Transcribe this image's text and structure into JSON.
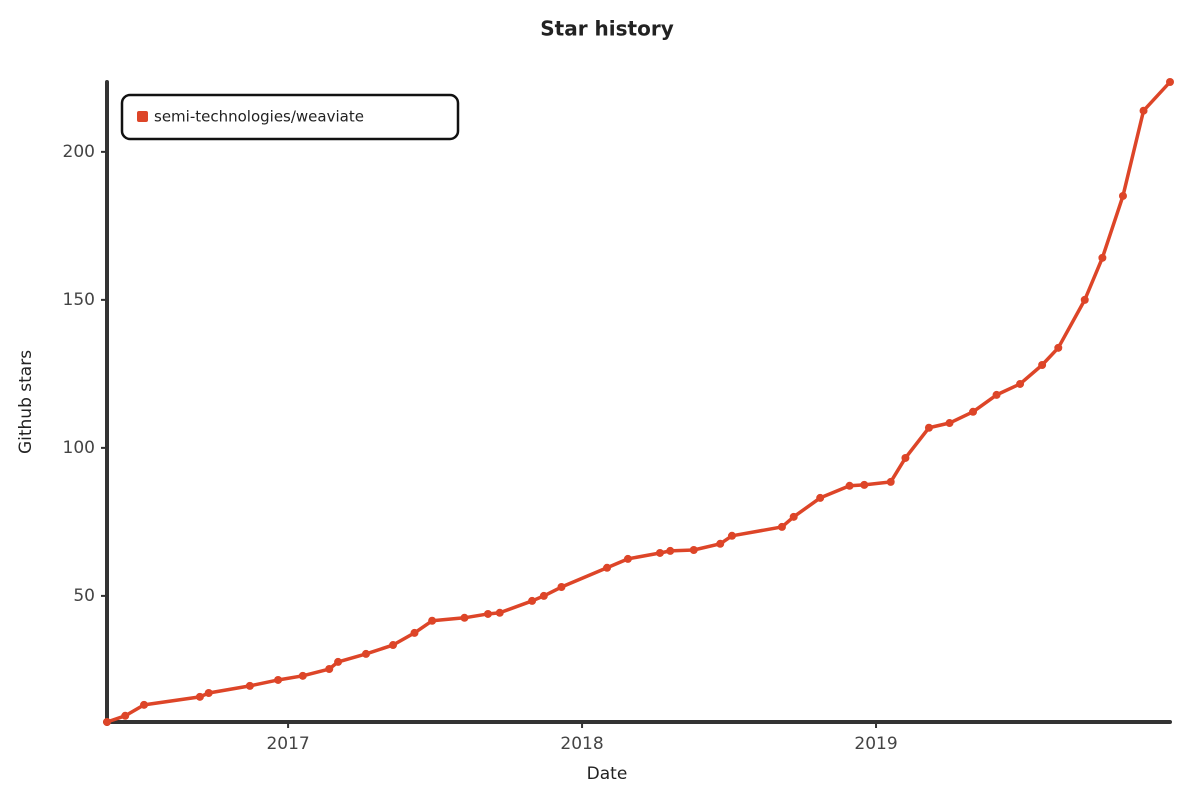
{
  "chart_data": {
    "type": "line",
    "title": "Star history",
    "x_label": "Date",
    "y_label": "Github stars",
    "x": [
      2016.384,
      2016.446,
      2016.51,
      2016.7,
      2016.73,
      2016.87,
      2016.966,
      2017.05,
      2017.14,
      2017.17,
      2017.265,
      2017.357,
      2017.43,
      2017.49,
      2017.6,
      2017.68,
      2017.72,
      2017.83,
      2017.87,
      2017.93,
      2018.085,
      2018.156,
      2018.265,
      2018.3,
      2018.38,
      2018.47,
      2018.51,
      2018.68,
      2018.72,
      2018.81,
      2018.91,
      2018.96,
      2019.05,
      2019.1,
      2019.18,
      2019.25,
      2019.33,
      2019.41,
      2019.49,
      2019.565,
      2019.62,
      2019.71,
      2019.77,
      2019.84,
      2019.91,
      2020.0
    ],
    "series": [
      {
        "name": "semi-technologies/weaviate",
        "color": "#dd4528",
        "values": [
          7.4,
          9.5,
          13.2,
          15.9,
          17.2,
          19.6,
          21.6,
          23,
          25.3,
          27.7,
          30.4,
          33.4,
          37.5,
          41.6,
          42.6,
          43.9,
          44.3,
          48.3,
          50,
          53,
          59.5,
          62.5,
          64.5,
          65.2,
          65.5,
          67.6,
          70.3,
          73.3,
          76.7,
          83.1,
          87.2,
          87.5,
          88.5,
          96.6,
          106.8,
          108.4,
          112.2,
          117.9,
          121.6,
          128,
          133.8,
          150,
          164.2,
          185.1,
          213.9,
          223.6
        ]
      }
    ],
    "xlim": [
      2016.384,
      2020.0
    ],
    "xticks": [
      2017,
      2018,
      2019
    ],
    "ylim": [
      7.4,
      223.6
    ],
    "yticks": [
      50,
      100,
      150,
      200
    ],
    "legend": "upper left"
  }
}
